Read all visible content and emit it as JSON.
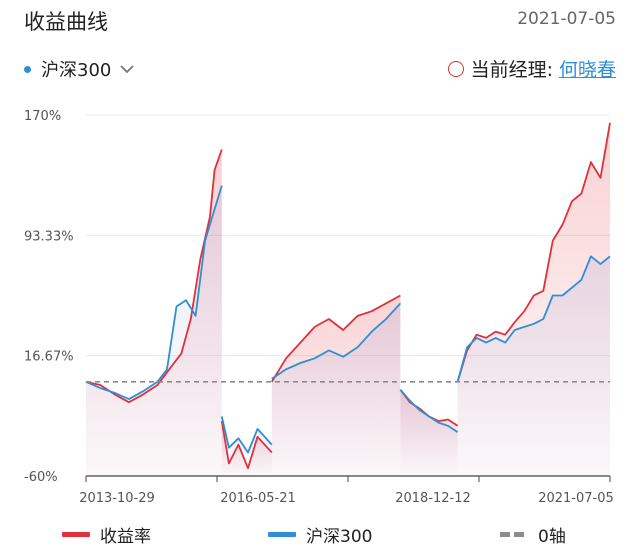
{
  "header": {
    "title": "收益曲线",
    "date": "2021-07-05"
  },
  "selector": {
    "label": "沪深300"
  },
  "manager": {
    "label": "当前经理:",
    "name": "何晓春"
  },
  "legend": {
    "returns": "收益率",
    "index": "沪深300",
    "zero": "0轴"
  },
  "colors": {
    "returns": "#e0313b",
    "index": "#2f8fd6",
    "zero": "#8c8c8c",
    "grid": "#e8e8e8"
  },
  "icons": {
    "selector_dot": "dot-icon",
    "dropdown": "chevron-down-icon",
    "manager": "circle-icon"
  },
  "chart_data": {
    "type": "line",
    "ylim": [
      -60,
      170
    ],
    "yticks": [
      "170%",
      "93.33%",
      "16.67%",
      "-60%"
    ],
    "xlabels": [
      "2013-10-29",
      "2016-05-21",
      "2018-12-12",
      "2021-07-05"
    ],
    "zero_line": 0,
    "segments": [
      {
        "name": "收益率",
        "color": "#e0313b",
        "x": [
          0.0,
          0.03,
          0.06,
          0.09,
          0.12,
          0.15,
          0.18,
          0.2,
          0.22,
          0.24,
          0.26,
          0.27,
          0.285
        ],
        "y": [
          0,
          -2,
          -8,
          -13,
          -8,
          -2,
          10,
          18,
          40,
          78,
          105,
          135,
          148
        ]
      },
      {
        "name": "沪深300",
        "color": "#2f8fd6",
        "x": [
          0.0,
          0.03,
          0.06,
          0.09,
          0.12,
          0.15,
          0.17,
          0.19,
          0.21,
          0.23,
          0.25,
          0.265,
          0.285
        ],
        "y": [
          0,
          -4,
          -7,
          -11,
          -6,
          0,
          8,
          48,
          52,
          42,
          90,
          105,
          125
        ]
      },
      {
        "name": "收益率",
        "color": "#e0313b",
        "x": [
          0.285,
          0.3,
          0.32,
          0.34,
          0.36,
          0.39
        ],
        "y": [
          -25,
          -52,
          -40,
          -55,
          -35,
          -45
        ]
      },
      {
        "name": "沪深300",
        "color": "#2f8fd6",
        "x": [
          0.285,
          0.3,
          0.32,
          0.34,
          0.36,
          0.39
        ],
        "y": [
          -22,
          -42,
          -36,
          -45,
          -30,
          -40
        ]
      },
      {
        "name": "收益率",
        "color": "#e0313b",
        "x": [
          0.39,
          0.42,
          0.45,
          0.48,
          0.51,
          0.54,
          0.57,
          0.6,
          0.63,
          0.66
        ],
        "y": [
          0,
          15,
          25,
          35,
          40,
          33,
          42,
          45,
          50,
          55
        ]
      },
      {
        "name": "沪深300",
        "color": "#2f8fd6",
        "x": [
          0.39,
          0.42,
          0.45,
          0.48,
          0.51,
          0.54,
          0.57,
          0.6,
          0.63,
          0.66
        ],
        "y": [
          2,
          8,
          12,
          15,
          20,
          16,
          22,
          32,
          40,
          50
        ]
      },
      {
        "name": "收益率",
        "color": "#e0313b",
        "x": [
          0.66,
          0.68,
          0.7,
          0.72,
          0.74,
          0.76,
          0.78
        ],
        "y": [
          -5,
          -13,
          -17,
          -22,
          -25,
          -24,
          -28
        ]
      },
      {
        "name": "沪深300",
        "color": "#2f8fd6",
        "x": [
          0.66,
          0.68,
          0.7,
          0.72,
          0.74,
          0.76,
          0.78
        ],
        "y": [
          -5,
          -12,
          -18,
          -22,
          -26,
          -28,
          -32
        ]
      },
      {
        "name": "收益率",
        "color": "#e0313b",
        "x": [
          0.78,
          0.8,
          0.82,
          0.84,
          0.86,
          0.88,
          0.9,
          0.92,
          0.94,
          0.96,
          0.98,
          1.0,
          1.02,
          1.04,
          1.06,
          1.08,
          1.1
        ],
        "y": [
          0,
          20,
          30,
          28,
          32,
          30,
          38,
          45,
          55,
          58,
          90,
          100,
          115,
          120,
          140,
          130,
          165
        ]
      },
      {
        "name": "沪深300",
        "color": "#2f8fd6",
        "x": [
          0.78,
          0.8,
          0.82,
          0.84,
          0.86,
          0.88,
          0.9,
          0.92,
          0.94,
          0.96,
          0.98,
          1.0,
          1.02,
          1.04,
          1.06,
          1.08,
          1.1
        ],
        "y": [
          0,
          22,
          28,
          25,
          28,
          25,
          33,
          35,
          37,
          40,
          55,
          55,
          60,
          65,
          80,
          75,
          80
        ]
      }
    ]
  }
}
